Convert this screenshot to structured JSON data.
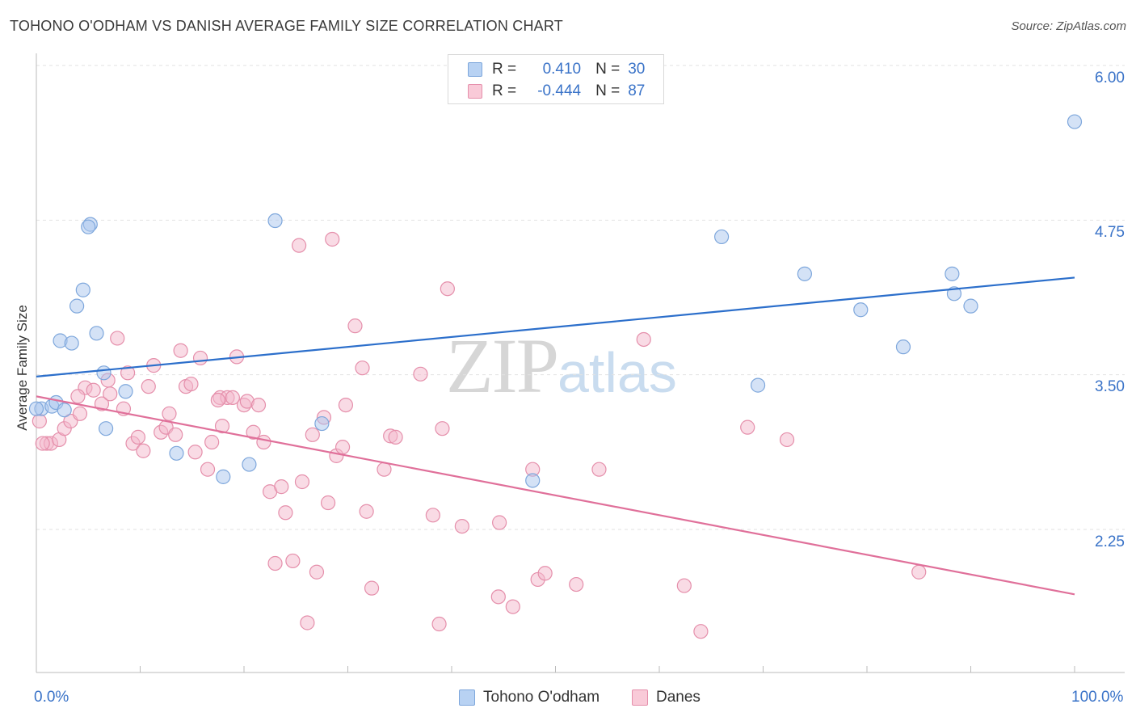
{
  "header": {
    "title": "TOHONO O'ODHAM VS DANISH AVERAGE FAMILY SIZE CORRELATION CHART",
    "source": "Source: ZipAtlas.com"
  },
  "legend_top": {
    "rows": [
      {
        "r_label": "R =",
        "r_value": "0.410",
        "n_label": "N =",
        "n_value": "30"
      },
      {
        "r_label": "R =",
        "r_value": "-0.444",
        "n_label": "N =",
        "n_value": "87"
      }
    ]
  },
  "watermark": {
    "zip": "ZIP",
    "atlas": "atlas"
  },
  "chart_data": {
    "type": "scatter",
    "title": "TOHONO O'ODHAM VS DANISH AVERAGE FAMILY SIZE CORRELATION CHART",
    "xlabel": "",
    "ylabel": "Average Family Size",
    "xlim": [
      0,
      100
    ],
    "ylim": [
      1.2,
      6.1
    ],
    "x_tick_labels": [
      "0.0%",
      "100.0%"
    ],
    "y_ticks": [
      2.25,
      3.5,
      4.75,
      6.0
    ],
    "y_tick_labels": [
      "2.25",
      "3.50",
      "4.75",
      "6.00"
    ],
    "grid": true,
    "legend_position": "bottom",
    "colors": {
      "tohono": "#a9c6ee",
      "tohono_edge": "#7ea7dc",
      "tohono_line": "#2c6fcb",
      "danes": "#f4b8cb",
      "danes_edge": "#e58fab",
      "danes_line": "#e0709a"
    },
    "series": [
      {
        "name": "Tohono O'odham",
        "r": 0.41,
        "n": 30,
        "trend": [
          [
            0,
            3.59
          ],
          [
            100,
            4.39
          ]
        ],
        "points": [
          [
            0.5,
            3.33
          ],
          [
            1.5,
            3.35
          ],
          [
            1.9,
            3.38
          ],
          [
            2.3,
            3.88
          ],
          [
            3.4,
            3.86
          ],
          [
            2.7,
            3.32
          ],
          [
            5.2,
            4.82
          ],
          [
            5.0,
            4.8
          ],
          [
            4.5,
            4.29
          ],
          [
            3.9,
            4.16
          ],
          [
            5.8,
            3.94
          ],
          [
            6.5,
            3.62
          ],
          [
            6.7,
            3.17
          ],
          [
            8.6,
            3.47
          ],
          [
            13.5,
            2.97
          ],
          [
            18.0,
            2.78
          ],
          [
            20.5,
            2.88
          ],
          [
            23.0,
            4.85
          ],
          [
            27.5,
            3.21
          ],
          [
            47.8,
            2.75
          ],
          [
            66.0,
            4.72
          ],
          [
            69.5,
            3.52
          ],
          [
            74.0,
            4.42
          ],
          [
            79.4,
            4.13
          ],
          [
            83.5,
            3.83
          ],
          [
            88.2,
            4.42
          ],
          [
            88.4,
            4.26
          ],
          [
            90.0,
            4.16
          ],
          [
            100.0,
            5.65
          ],
          [
            0.0,
            3.33
          ]
        ]
      },
      {
        "name": "Danes",
        "r": -0.444,
        "n": 87,
        "trend": [
          [
            0,
            3.43
          ],
          [
            100,
            1.83
          ]
        ],
        "points": [
          [
            0.3,
            3.23
          ],
          [
            1.0,
            3.05
          ],
          [
            1.4,
            3.05
          ],
          [
            2.2,
            3.08
          ],
          [
            2.7,
            3.17
          ],
          [
            3.3,
            3.23
          ],
          [
            4.2,
            3.29
          ],
          [
            4.7,
            3.5
          ],
          [
            4.0,
            3.43
          ],
          [
            5.5,
            3.48
          ],
          [
            6.3,
            3.37
          ],
          [
            6.9,
            3.56
          ],
          [
            7.1,
            3.45
          ],
          [
            7.8,
            3.9
          ],
          [
            8.4,
            3.33
          ],
          [
            8.8,
            3.62
          ],
          [
            9.3,
            3.05
          ],
          [
            9.8,
            3.1
          ],
          [
            10.3,
            2.99
          ],
          [
            10.8,
            3.51
          ],
          [
            11.3,
            3.68
          ],
          [
            12.0,
            3.14
          ],
          [
            12.5,
            3.18
          ],
          [
            12.8,
            3.29
          ],
          [
            13.4,
            3.12
          ],
          [
            13.9,
            3.8
          ],
          [
            14.4,
            3.51
          ],
          [
            14.9,
            3.53
          ],
          [
            15.3,
            2.98
          ],
          [
            15.8,
            3.74
          ],
          [
            16.5,
            2.84
          ],
          [
            16.9,
            3.06
          ],
          [
            17.7,
            3.42
          ],
          [
            17.9,
            3.19
          ],
          [
            18.4,
            3.42
          ],
          [
            18.9,
            3.42
          ],
          [
            19.3,
            3.75
          ],
          [
            20.0,
            3.36
          ],
          [
            20.3,
            3.39
          ],
          [
            20.9,
            3.14
          ],
          [
            21.4,
            3.36
          ],
          [
            21.9,
            3.06
          ],
          [
            22.5,
            2.66
          ],
          [
            23.0,
            2.08
          ],
          [
            23.6,
            2.7
          ],
          [
            24.0,
            2.49
          ],
          [
            24.7,
            2.1
          ],
          [
            25.3,
            4.65
          ],
          [
            25.6,
            2.74
          ],
          [
            26.1,
            1.6
          ],
          [
            26.6,
            3.12
          ],
          [
            27.0,
            2.01
          ],
          [
            27.7,
            3.26
          ],
          [
            28.1,
            2.57
          ],
          [
            28.5,
            4.7
          ],
          [
            28.9,
            2.95
          ],
          [
            29.5,
            3.02
          ],
          [
            29.8,
            3.36
          ],
          [
            30.7,
            4.0
          ],
          [
            31.4,
            3.66
          ],
          [
            31.8,
            2.5
          ],
          [
            32.3,
            1.88
          ],
          [
            33.5,
            2.84
          ],
          [
            34.1,
            3.11
          ],
          [
            34.6,
            3.1
          ],
          [
            37.0,
            3.61
          ],
          [
            38.2,
            2.47
          ],
          [
            38.8,
            1.59
          ],
          [
            39.1,
            3.17
          ],
          [
            39.6,
            4.3
          ],
          [
            41.0,
            2.38
          ],
          [
            44.5,
            1.81
          ],
          [
            44.6,
            2.41
          ],
          [
            45.9,
            1.73
          ],
          [
            47.8,
            2.84
          ],
          [
            48.3,
            1.95
          ],
          [
            49.0,
            2.0
          ],
          [
            52.0,
            1.91
          ],
          [
            54.2,
            2.84
          ],
          [
            58.5,
            3.89
          ],
          [
            62.4,
            1.9
          ],
          [
            64.0,
            1.53
          ],
          [
            68.5,
            3.18
          ],
          [
            72.3,
            3.08
          ],
          [
            85.0,
            2.01
          ],
          [
            0.6,
            3.05
          ],
          [
            17.5,
            3.4
          ]
        ]
      }
    ]
  }
}
